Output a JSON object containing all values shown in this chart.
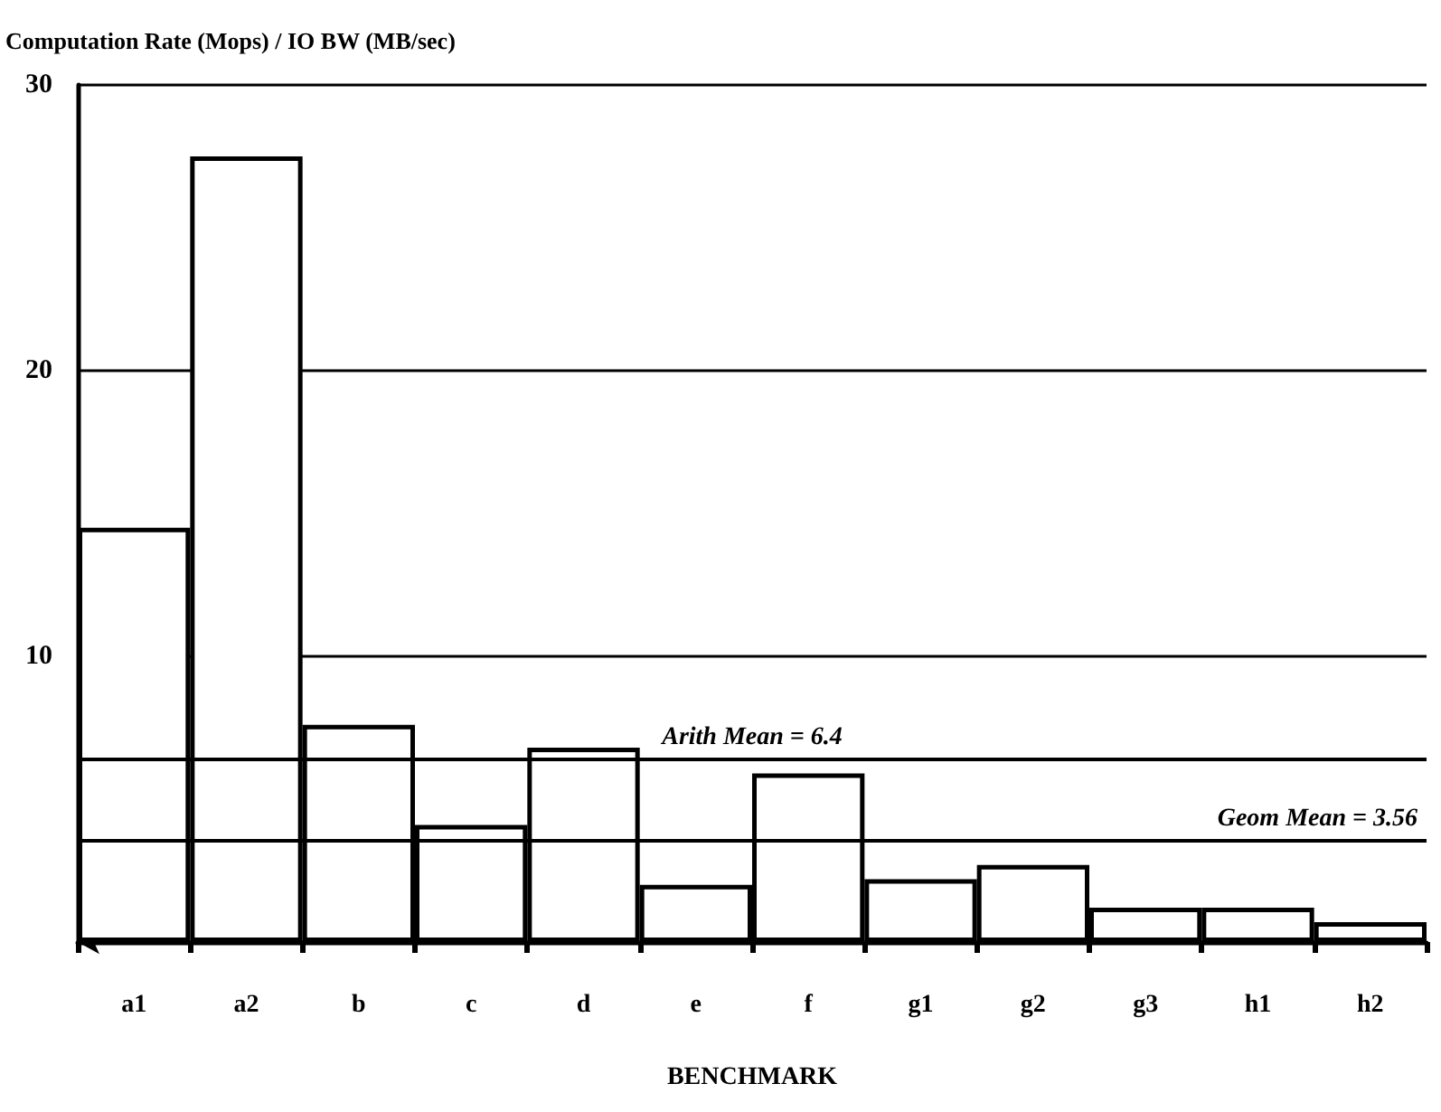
{
  "chart_data": {
    "type": "bar",
    "ylabel": "Computation Rate (Mops) / IO BW (MB/sec)",
    "xlabel": "BENCHMARK",
    "categories": [
      "a1",
      "a2",
      "b",
      "c",
      "d",
      "e",
      "f",
      "g1",
      "g2",
      "g3",
      "h1",
      "h2"
    ],
    "values": [
      14.5,
      27.5,
      7.6,
      4.1,
      6.8,
      2.0,
      5.9,
      2.2,
      2.7,
      1.2,
      1.2,
      0.7
    ],
    "color": "#ffffff",
    "ylim": [
      0,
      30
    ],
    "yticks": [
      10,
      20,
      30
    ],
    "grid": "y",
    "ref_lines": [
      {
        "axis": "y",
        "value": 6.4,
        "label": "Arith Mean = 6.4",
        "color": "#000000"
      },
      {
        "axis": "y",
        "value": 3.56,
        "label": "Geom Mean = 3.56",
        "color": "#000000"
      }
    ]
  }
}
